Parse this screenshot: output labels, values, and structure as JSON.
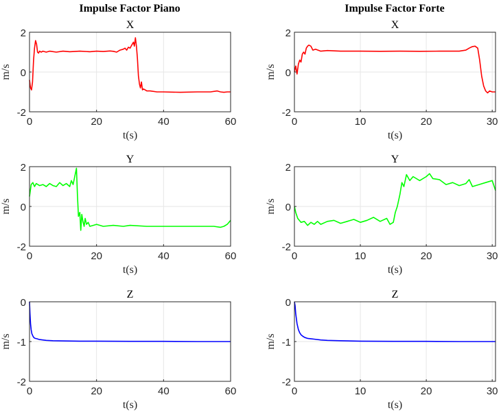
{
  "columns": [
    {
      "title": "Impulse Factor Piano"
    },
    {
      "title": "Impulse Factor Forte"
    }
  ],
  "chart_data": [
    {
      "type": "line",
      "column": 0,
      "row": 0,
      "title": "X",
      "xlabel": "t(s)",
      "ylabel": "m/s",
      "xlim": [
        0,
        60
      ],
      "ylim": [
        -2,
        2
      ],
      "xticks": [
        0,
        20,
        40,
        60
      ],
      "yticks": [
        -2,
        0,
        2
      ],
      "grid": true,
      "series": [
        {
          "color": "#ff0000",
          "x": [
            0,
            0.3,
            0.6,
            0.9,
            1.2,
            1.5,
            1.8,
            2.1,
            2.4,
            2.7,
            3,
            3.5,
            4,
            5,
            6,
            8,
            10,
            12,
            15,
            18,
            20,
            22,
            24,
            25,
            26,
            27,
            28,
            28.5,
            29,
            29.5,
            30,
            30.5,
            31,
            31.3,
            31.6,
            31.9,
            32.2,
            32.5,
            32.8,
            33.1,
            33.4,
            33.7,
            34,
            34.5,
            35,
            36,
            38,
            40,
            45,
            50,
            54,
            56,
            57,
            58,
            59,
            60
          ],
          "y": [
            -0.4,
            -0.8,
            -0.9,
            -0.5,
            0.6,
            1.2,
            1.58,
            1.4,
            1.0,
            0.95,
            1.05,
            1.0,
            1.05,
            1.0,
            1.05,
            1.0,
            1.05,
            1.02,
            1.05,
            1.02,
            1.05,
            1.03,
            1.06,
            1.04,
            1.0,
            1.1,
            1.15,
            1.2,
            1.1,
            1.25,
            1.2,
            1.35,
            1.5,
            1.3,
            1.72,
            1.3,
            0.7,
            -0.2,
            -0.6,
            -0.8,
            -0.5,
            -0.9,
            -0.85,
            -0.9,
            -0.95,
            -0.95,
            -1.0,
            -1.0,
            -1.02,
            -1.0,
            -1.0,
            -0.95,
            -1.0,
            -1.02,
            -1.0,
            -1.0
          ]
        }
      ]
    },
    {
      "type": "line",
      "column": 1,
      "row": 0,
      "title": "X",
      "xlabel": "t(s)",
      "ylabel": "m/s",
      "xlim": [
        0,
        30.5
      ],
      "ylim": [
        -2,
        2
      ],
      "xticks": [
        0,
        10,
        20,
        30
      ],
      "yticks": [
        -2,
        0,
        2
      ],
      "grid": true,
      "series": [
        {
          "color": "#ff0000",
          "x": [
            0,
            0.2,
            0.4,
            0.6,
            0.8,
            1.0,
            1.2,
            1.4,
            1.6,
            1.8,
            2.0,
            2.2,
            2.5,
            2.8,
            3.2,
            4,
            5,
            7,
            10,
            13,
            16,
            19,
            22,
            25,
            26,
            26.5,
            27,
            27.4,
            27.8,
            28.1,
            28.4,
            28.7,
            29.0,
            29.3,
            29.6,
            30.0,
            30.5
          ],
          "y": [
            0,
            0.3,
            -0.1,
            0.4,
            0.6,
            0.5,
            0.9,
            1.0,
            0.9,
            1.2,
            1.3,
            1.35,
            1.3,
            1.1,
            1.15,
            1.05,
            1.08,
            1.05,
            1.05,
            1.04,
            1.05,
            1.04,
            1.05,
            1.05,
            1.1,
            1.2,
            1.28,
            1.3,
            1.2,
            0.6,
            -0.2,
            -0.7,
            -0.95,
            -1.05,
            -0.95,
            -1.0,
            -1.0
          ]
        }
      ]
    },
    {
      "type": "line",
      "column": 0,
      "row": 1,
      "title": "Y",
      "xlabel": "t(s)",
      "ylabel": "m/s",
      "xlim": [
        0,
        60
      ],
      "ylim": [
        -2,
        2
      ],
      "xticks": [
        0,
        20,
        40,
        60
      ],
      "yticks": [
        -2,
        0,
        2
      ],
      "grid": true,
      "series": [
        {
          "color": "#00ff00",
          "x": [
            0,
            0.5,
            1,
            1.5,
            2,
            3,
            4,
            5,
            6,
            7,
            8,
            9,
            10,
            11,
            12,
            12.5,
            13,
            13.5,
            14,
            14.3,
            14.6,
            15,
            15.3,
            15.6,
            16,
            16.3,
            16.6,
            17,
            17.5,
            18,
            19,
            20,
            22,
            25,
            28,
            30,
            35,
            40,
            45,
            50,
            55,
            57,
            58,
            59,
            60
          ],
          "y": [
            0.5,
            1.1,
            1.2,
            1.0,
            1.15,
            1.05,
            1.1,
            1.0,
            1.15,
            1.05,
            1.0,
            1.2,
            1.05,
            1.15,
            1.0,
            1.3,
            1.1,
            1.5,
            1.92,
            0.6,
            -0.5,
            -0.3,
            -1.2,
            -0.4,
            -0.8,
            -1.0,
            -0.6,
            -0.9,
            -0.8,
            -1.0,
            -0.95,
            -0.9,
            -1.0,
            -0.95,
            -1.0,
            -0.95,
            -1.0,
            -1.0,
            -1.0,
            -1.0,
            -1.0,
            -1.05,
            -1.0,
            -0.9,
            -0.7
          ]
        }
      ]
    },
    {
      "type": "line",
      "column": 1,
      "row": 1,
      "title": "Y",
      "xlabel": "t(s)",
      "ylabel": "m/s",
      "xlim": [
        0,
        30.5
      ],
      "ylim": [
        -2,
        2
      ],
      "xticks": [
        0,
        10,
        20,
        30
      ],
      "yticks": [
        -2,
        0,
        2
      ],
      "grid": true,
      "series": [
        {
          "color": "#00ff00",
          "x": [
            0,
            0.2,
            0.5,
            1,
            1.5,
            2,
            2.5,
            3,
            3.5,
            4,
            5,
            6,
            7,
            8,
            9,
            10,
            11,
            12,
            13,
            14,
            14.5,
            15,
            15.3,
            15.6,
            16,
            16.3,
            16.6,
            17,
            17.5,
            18,
            19,
            20,
            20.5,
            21,
            22,
            23,
            24,
            25,
            26,
            26.5,
            27,
            28,
            29,
            30,
            30.5
          ],
          "y": [
            0,
            -0.3,
            -0.6,
            -0.8,
            -0.75,
            -0.95,
            -0.8,
            -0.9,
            -0.75,
            -0.9,
            -0.75,
            -0.7,
            -0.85,
            -0.75,
            -0.65,
            -0.8,
            -0.7,
            -0.55,
            -0.75,
            -0.6,
            -0.9,
            -0.8,
            -0.3,
            0.0,
            0.6,
            1.2,
            1.0,
            1.6,
            1.3,
            1.5,
            1.3,
            1.5,
            1.65,
            1.4,
            1.35,
            1.1,
            1.2,
            1.05,
            1.15,
            1.35,
            1.0,
            1.1,
            1.2,
            1.3,
            0.8
          ]
        }
      ]
    },
    {
      "type": "line",
      "column": 0,
      "row": 2,
      "title": "Z",
      "xlabel": "t(s)",
      "ylabel": "m/s",
      "xlim": [
        0,
        60
      ],
      "ylim": [
        -2,
        0
      ],
      "xticks": [
        0,
        20,
        40,
        60
      ],
      "yticks": [
        -2,
        -1,
        0
      ],
      "grid": true,
      "series": [
        {
          "color": "#0000ff",
          "x": [
            0,
            0.15,
            0.3,
            0.5,
            0.7,
            1,
            1.3,
            1.7,
            2.2,
            3,
            4,
            5,
            7,
            10,
            15,
            20,
            30,
            40,
            50,
            60
          ],
          "y": [
            0,
            -0.3,
            -0.55,
            -0.7,
            -0.8,
            -0.86,
            -0.9,
            -0.92,
            -0.93,
            -0.95,
            -0.96,
            -0.97,
            -0.98,
            -0.985,
            -0.99,
            -0.99,
            -0.995,
            -0.995,
            -1.0,
            -1.0
          ]
        }
      ]
    },
    {
      "type": "line",
      "column": 1,
      "row": 2,
      "title": "Z",
      "xlabel": "t(s)",
      "ylabel": "m/s",
      "xlim": [
        0,
        30.5
      ],
      "ylim": [
        -2,
        0
      ],
      "xticks": [
        0,
        10,
        20,
        30
      ],
      "yticks": [
        -2,
        -1,
        0
      ],
      "grid": true,
      "series": [
        {
          "color": "#0000ff",
          "x": [
            0,
            0.1,
            0.2,
            0.4,
            0.6,
            0.8,
            1,
            1.3,
            1.6,
            2,
            2.5,
            3,
            4,
            5,
            7,
            10,
            15,
            20,
            25,
            30,
            30.5
          ],
          "y": [
            0,
            -0.1,
            -0.3,
            -0.55,
            -0.7,
            -0.78,
            -0.83,
            -0.87,
            -0.9,
            -0.92,
            -0.93,
            -0.94,
            -0.96,
            -0.97,
            -0.98,
            -0.99,
            -0.995,
            -0.995,
            -1.0,
            -1.0,
            -1.0
          ]
        }
      ]
    }
  ]
}
